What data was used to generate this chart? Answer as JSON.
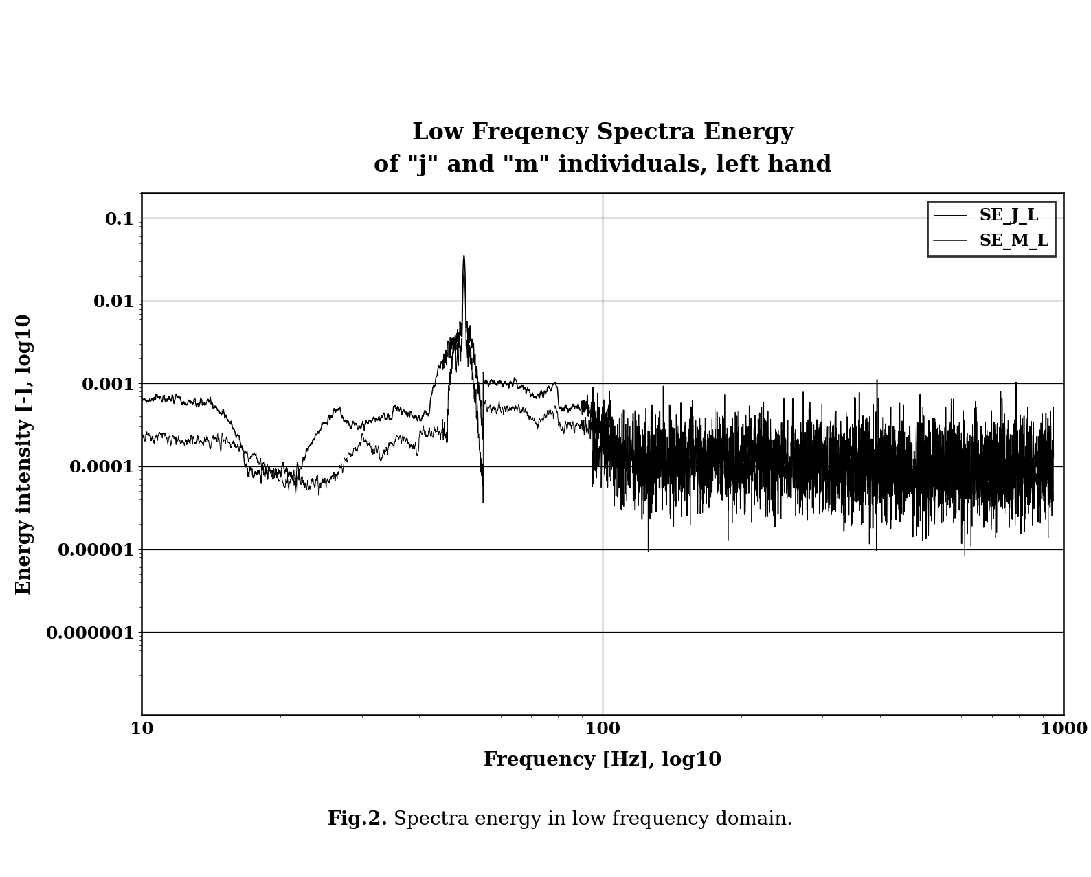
{
  "title_line1": "Low Freqency Spectra Energy",
  "title_line2": "of \"j\" and \"m\" individuals, left hand",
  "xlabel": "Frequency [Hz], log10",
  "ylabel": "Energy intensity [-], log10",
  "legend_labels": [
    "SE_J_L",
    "SE_M_L"
  ],
  "xmin": 10,
  "xmax": 1000,
  "ymin": 1e-07,
  "ymax": 0.2,
  "caption_bold": "Fig.2.",
  "caption_rest": " Spectra energy in low frequency domain.",
  "line_color": "#000000",
  "background_color": "#ffffff",
  "title_fontsize": 24,
  "axis_label_fontsize": 20,
  "tick_fontsize": 18,
  "legend_fontsize": 17,
  "caption_fontsize": 20,
  "yticks": [
    1e-06,
    1e-05,
    0.0001,
    0.001,
    0.01,
    0.1
  ],
  "ytick_labels": [
    "0.000001",
    "0.00001",
    "0.0001",
    "0.001",
    "0.01",
    "0.1"
  ],
  "xticks": [
    10,
    100,
    1000
  ],
  "xtick_labels": [
    "10",
    "100",
    "1000"
  ]
}
